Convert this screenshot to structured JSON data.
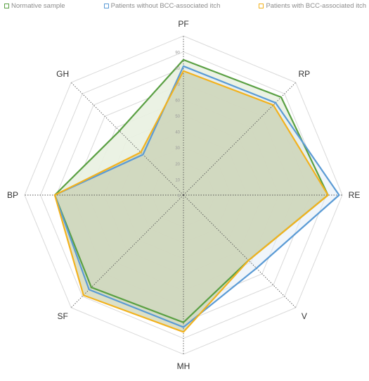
{
  "chart_data": {
    "type": "radar",
    "axes": [
      "PF",
      "RP",
      "RE",
      "V",
      "MH",
      "SF",
      "BP",
      "GH"
    ],
    "range": [
      0,
      100
    ],
    "tick_values": [
      0,
      10,
      20,
      30,
      40,
      50,
      60,
      70,
      80,
      90,
      100
    ],
    "tick_labels": [
      "0",
      "10",
      "20",
      "30",
      "40",
      "50",
      "60",
      "70",
      "80",
      "90"
    ],
    "legend_position": "top",
    "series": [
      {
        "name": "Normative sample",
        "color": "#5aa043",
        "fill": "#e9f1e1",
        "values": [
          85,
          87,
          91,
          58,
          80,
          82,
          81,
          57
        ]
      },
      {
        "name": "Patients without BCC-associated itch",
        "color": "#5b9bd5",
        "fill": "#e3edf5",
        "values": [
          81,
          82,
          98,
          65,
          83,
          84,
          81,
          36
        ]
      },
      {
        "name": "Patients with BCC-associated itch",
        "color": "#f2b21e",
        "fill": "#bfc69a",
        "values": [
          78,
          80,
          91,
          58,
          86,
          89,
          81,
          38
        ]
      }
    ]
  }
}
